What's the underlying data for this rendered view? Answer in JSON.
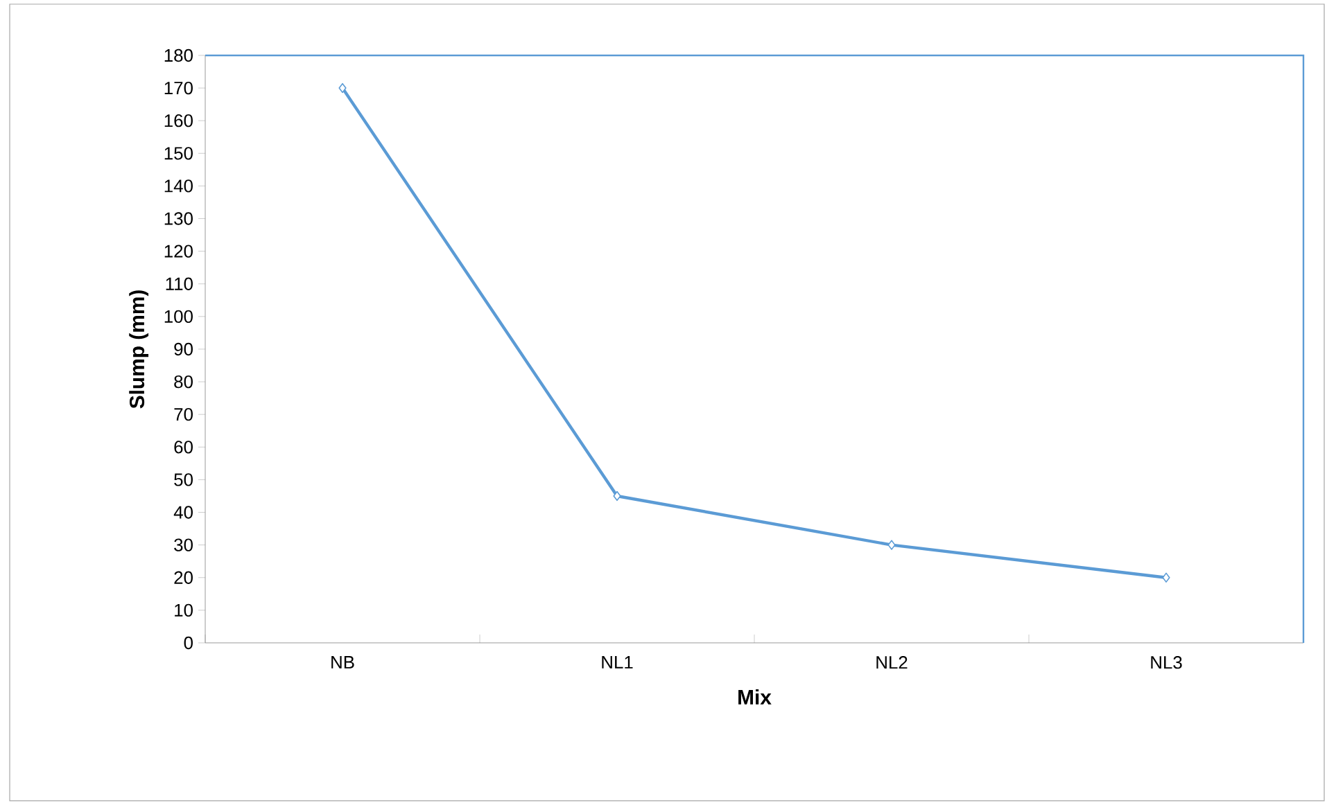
{
  "chart_data": {
    "type": "line",
    "xlabel": "Mix",
    "ylabel": "Slump (mm)",
    "categories": [
      "NB",
      "NL1",
      "NL2",
      "NL3"
    ],
    "series": [
      {
        "color": "#5b9bd5",
        "values": [
          170,
          45,
          30,
          20
        ]
      }
    ],
    "ylim": [
      0,
      180
    ],
    "yticks": [
      0,
      10,
      20,
      30,
      40,
      50,
      60,
      70,
      80,
      90,
      100,
      110,
      120,
      130,
      140,
      150,
      160,
      170,
      180
    ],
    "marker": "diamond"
  }
}
